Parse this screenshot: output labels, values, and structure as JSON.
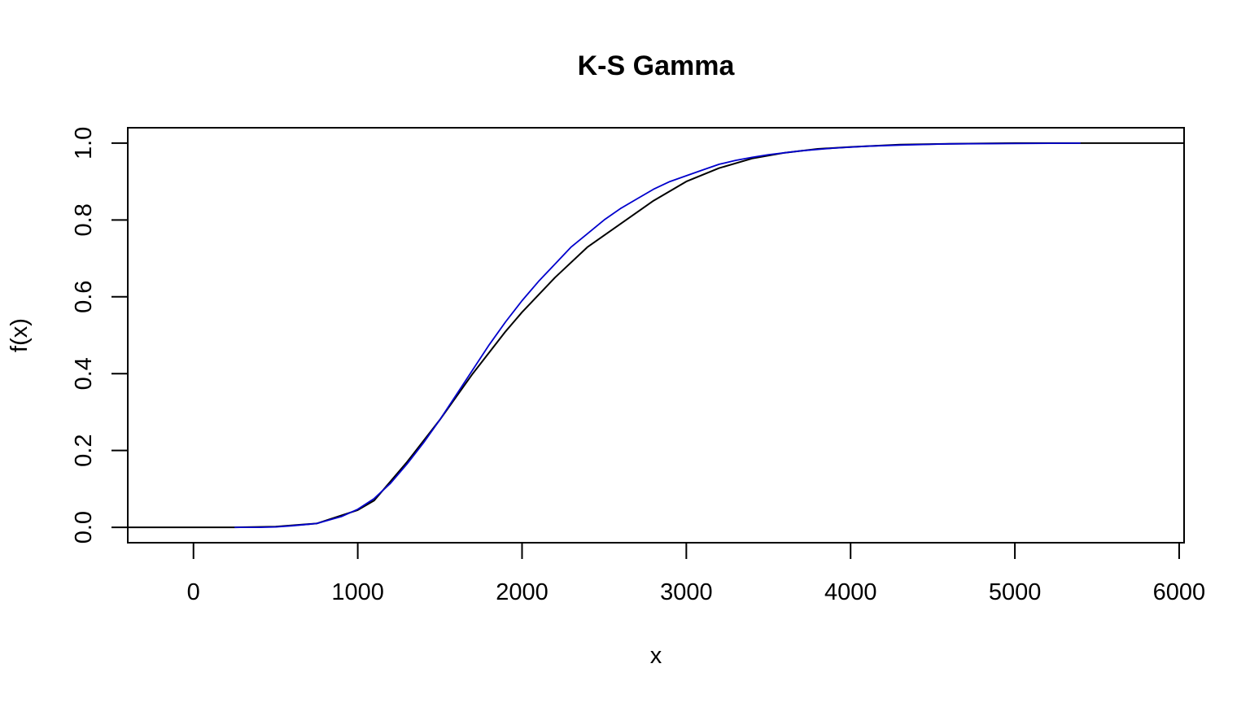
{
  "chart_data": {
    "type": "line",
    "title": "K-S Gamma",
    "xlabel": "x",
    "ylabel": "f(x)",
    "xlim": [
      -400,
      6030
    ],
    "ylim": [
      -0.04,
      1.04
    ],
    "x_ticks": [
      0,
      1000,
      2000,
      3000,
      4000,
      5000,
      6000
    ],
    "x_tick_labels": [
      "0",
      "1000",
      "2000",
      "3000",
      "4000",
      "5000",
      "6000"
    ],
    "y_ticks": [
      0.0,
      0.2,
      0.4,
      0.6,
      0.8,
      1.0
    ],
    "y_tick_labels": [
      "0.0",
      "0.2",
      "0.4",
      "0.6",
      "0.8",
      "1.0"
    ],
    "grid": false,
    "series": [
      {
        "role": "empirical-cdf",
        "color": "#000000",
        "x": [
          -400,
          250,
          500,
          750,
          1000,
          1100,
          1300,
          1500,
          1700,
          1900,
          2000,
          2200,
          2400,
          2600,
          2800,
          3000,
          3200,
          3400,
          3600,
          3800,
          4000,
          4300,
          4600,
          5000,
          5400,
          6030
        ],
        "y": [
          0.0,
          0.0,
          0.002,
          0.01,
          0.045,
          0.07,
          0.17,
          0.28,
          0.4,
          0.51,
          0.56,
          0.65,
          0.73,
          0.79,
          0.85,
          0.9,
          0.935,
          0.96,
          0.975,
          0.985,
          0.99,
          0.996,
          0.998,
          1.0,
          1.0,
          1.0
        ]
      },
      {
        "role": "fitted-gamma-cdf",
        "color": "#0000cc",
        "x": [
          250,
          400,
          500,
          600,
          750,
          900,
          1000,
          1100,
          1200,
          1300,
          1400,
          1500,
          1600,
          1700,
          1800,
          1900,
          2000,
          2100,
          2200,
          2300,
          2400,
          2500,
          2600,
          2700,
          2800,
          2900,
          3000,
          3100,
          3200,
          3300,
          3400,
          3500,
          3700,
          3900,
          4100,
          4300,
          4600,
          5000,
          5400
        ],
        "y": [
          0.0,
          0.0,
          0.001,
          0.004,
          0.01,
          0.028,
          0.047,
          0.075,
          0.115,
          0.165,
          0.22,
          0.28,
          0.345,
          0.41,
          0.475,
          0.535,
          0.59,
          0.64,
          0.685,
          0.73,
          0.765,
          0.8,
          0.83,
          0.855,
          0.88,
          0.9,
          0.915,
          0.93,
          0.945,
          0.955,
          0.963,
          0.97,
          0.98,
          0.987,
          0.992,
          0.995,
          0.998,
          0.999,
          1.0
        ]
      }
    ]
  }
}
